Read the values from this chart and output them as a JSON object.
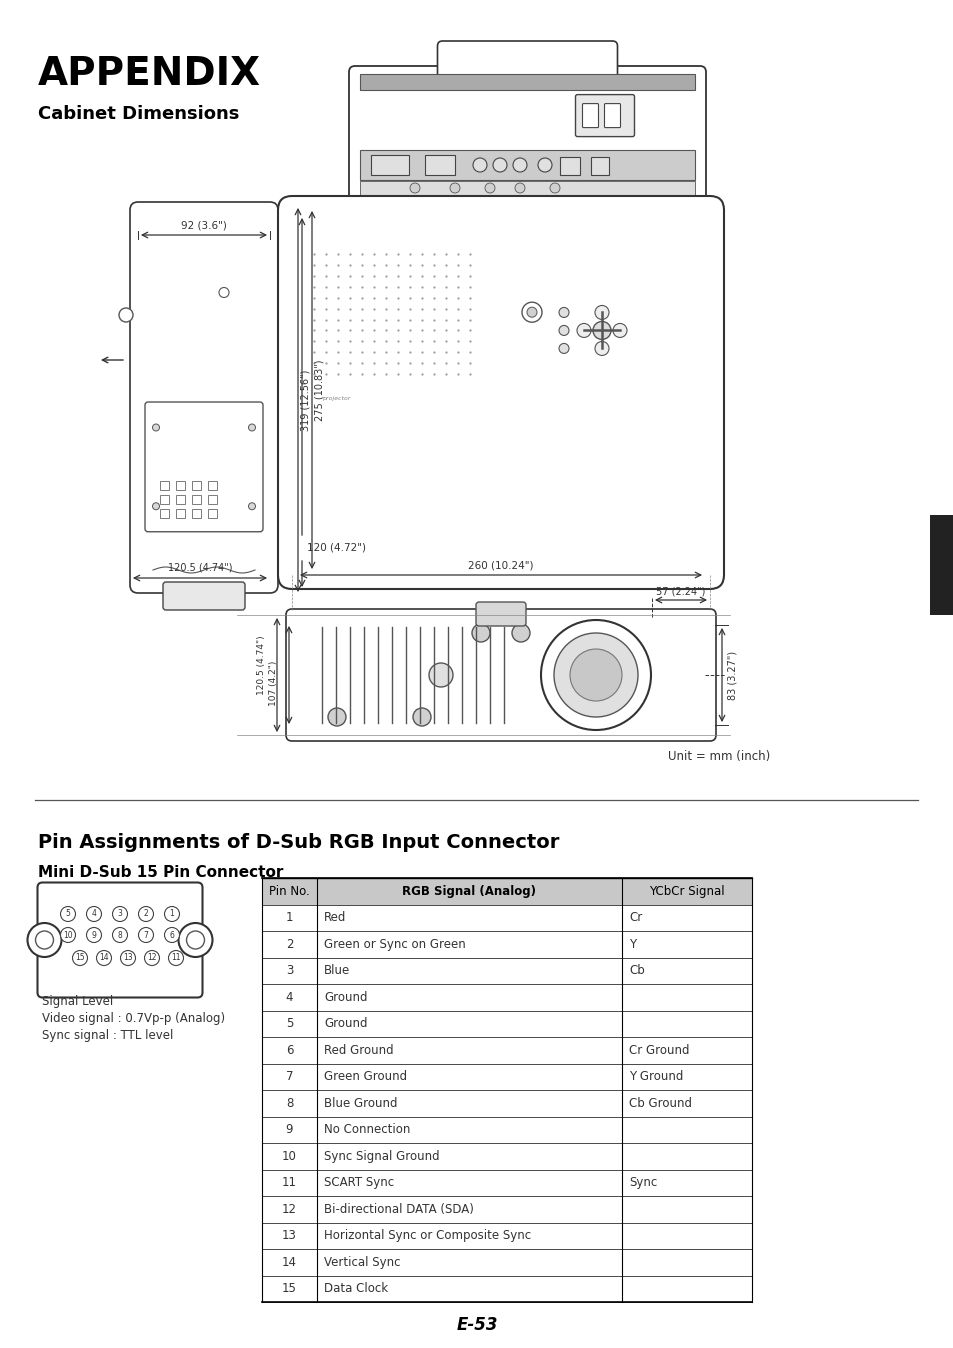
{
  "title": "APPENDIX",
  "section1_title": "Cabinet Dimensions",
  "section2_title": "Pin Assignments of D-Sub RGB Input Connector",
  "section2_subtitle": "Mini D-Sub 15 Pin Connector",
  "signal_level_text": [
    "Signal Level",
    "Video signal : 0.7Vp-p (Analog)",
    "Sync signal : TTL level"
  ],
  "unit_text": "Unit = mm (inch)",
  "page_number": "E-53",
  "table_headers": [
    "Pin No.",
    "RGB Signal (Analog)",
    "YCbCr Signal"
  ],
  "table_rows": [
    [
      "1",
      "Red",
      "Cr"
    ],
    [
      "2",
      "Green or Sync on Green",
      "Y"
    ],
    [
      "3",
      "Blue",
      "Cb"
    ],
    [
      "4",
      "Ground",
      ""
    ],
    [
      "5",
      "Ground",
      ""
    ],
    [
      "6",
      "Red Ground",
      "Cr Ground"
    ],
    [
      "7",
      "Green Ground",
      "Y Ground"
    ],
    [
      "8",
      "Blue Ground",
      "Cb Ground"
    ],
    [
      "9",
      "No Connection",
      ""
    ],
    [
      "10",
      "Sync Signal Ground",
      ""
    ],
    [
      "11",
      "SCART Sync",
      "Sync"
    ],
    [
      "12",
      "Bi-directional DATA (SDA)",
      ""
    ],
    [
      "13",
      "Horizontal Sync or Composite Sync",
      ""
    ],
    [
      "14",
      "Vertical Sync",
      ""
    ],
    [
      "15",
      "Data Clock",
      ""
    ]
  ],
  "bg_color": "#ffffff",
  "text_color": "#000000",
  "table_header_bg": "#c8c8c8",
  "table_border_color": "#000000"
}
